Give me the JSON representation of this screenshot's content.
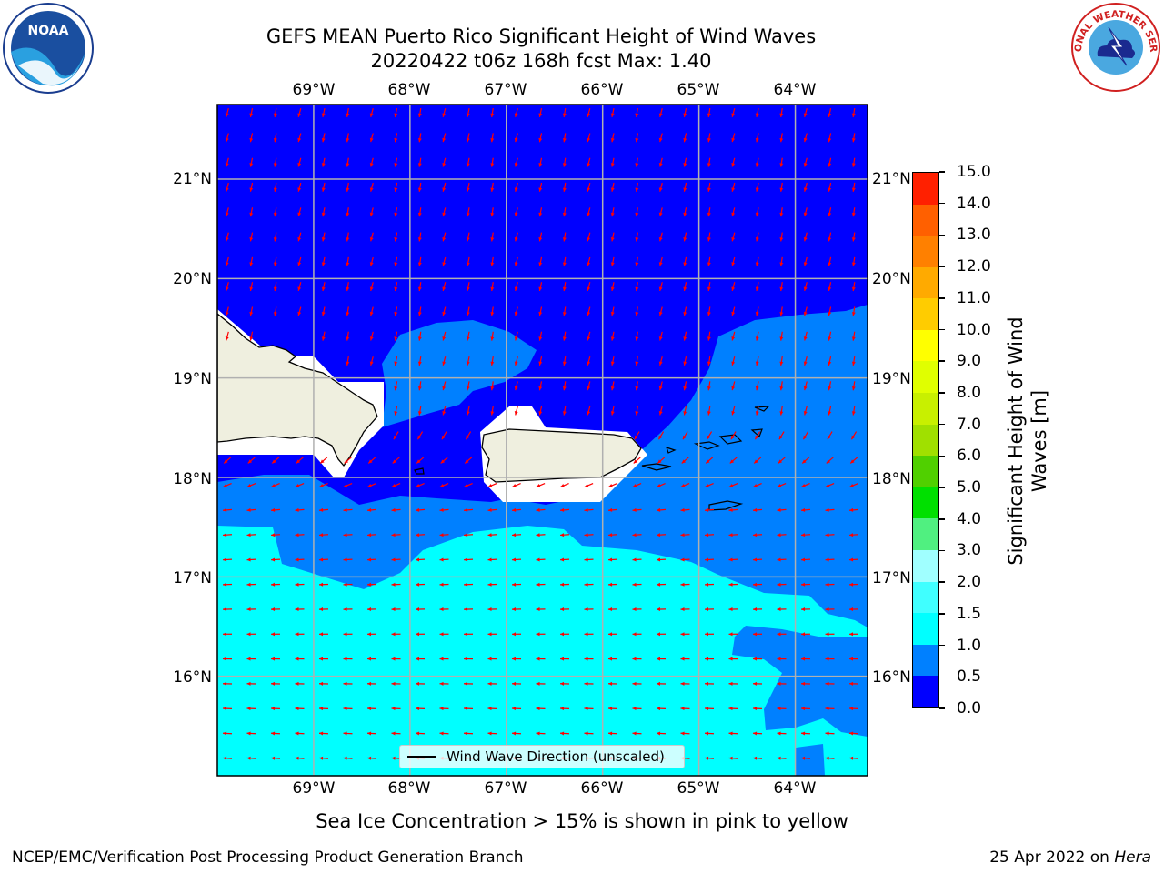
{
  "title": {
    "line1": "GEFS MEAN Puerto Rico Significant Height of Wind Waves",
    "line2": "20220422 t06z 168h fcst   Max: 1.40"
  },
  "logos": {
    "left": {
      "icon": "noaa-logo",
      "text": "NOAA"
    },
    "right": {
      "icon": "national-weather-service-logo",
      "text": "NATIONAL WEATHER SERVICE"
    }
  },
  "map": {
    "lon_labels": [
      "69°W",
      "68°W",
      "67°W",
      "66°W",
      "65°W",
      "64°W"
    ],
    "lat_labels": [
      "21°N",
      "20°N",
      "19°N",
      "18°N",
      "17°N",
      "16°N"
    ],
    "lon_values": [
      -69,
      -68,
      -67,
      -66,
      -65,
      -64
    ],
    "lat_values": [
      21,
      20,
      19,
      18,
      17,
      16
    ],
    "extent": {
      "lon_min": -70.0,
      "lon_max": -63.25,
      "lat_min": 15.0,
      "lat_max": 21.75
    },
    "colors": {
      "level_0_0.5": "#0000ff",
      "level_0.5_1.0": "#0080ff",
      "level_1.0_1.5": "#00ffff",
      "land": "#efefdf",
      "masked": "#ffffff",
      "arrows": "#ff0000",
      "grid": "#b0b0b0"
    }
  },
  "legend": {
    "label": "Wind Wave Direction (unscaled)"
  },
  "colorbar": {
    "title": "Significant Height of Wind Waves [m]",
    "ticks": [
      "0.0",
      "0.5",
      "1.0",
      "1.5",
      "2.0",
      "3.0",
      "4.0",
      "5.0",
      "6.0",
      "7.0",
      "8.0",
      "9.0",
      "10.0",
      "11.0",
      "12.0",
      "13.0",
      "14.0",
      "15.0"
    ],
    "colors": [
      "#0000ff",
      "#0080ff",
      "#00ffff",
      "#40ffff",
      "#a0ffff",
      "#50f080",
      "#00e000",
      "#50d000",
      "#a0e000",
      "#c8f000",
      "#e0ff00",
      "#ffff00",
      "#ffcc00",
      "#ffaa00",
      "#ff8000",
      "#ff6000",
      "#ff2000"
    ]
  },
  "note": "Sea Ice Concentration > 15% is shown in pink to yellow",
  "footer": {
    "left": "NCEP/EMC/Verification Post Processing Product Generation Branch",
    "right_prefix": "25 Apr 2022 on ",
    "right_machine": "Hera"
  }
}
